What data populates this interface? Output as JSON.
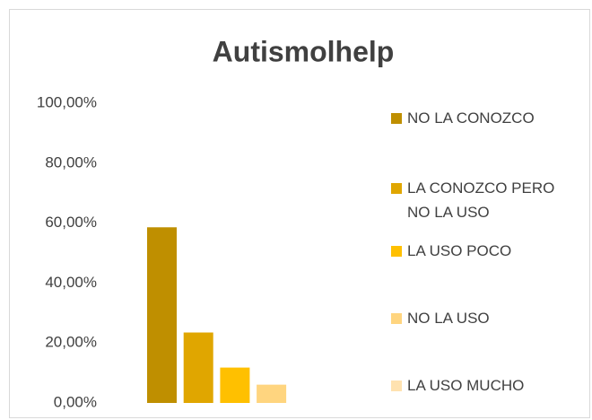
{
  "chart_data": {
    "type": "bar",
    "title": "Autismolhelp",
    "categories": [
      null
    ],
    "series": [
      {
        "name": "NO LA CONOZCO",
        "color": "#bf8f00",
        "values": [
          58.6
        ]
      },
      {
        "name": "LA CONOZCO PERO NO LA USO",
        "color": "#e0a600",
        "values": [
          23.5
        ]
      },
      {
        "name": "LA USO POCO",
        "color": "#ffc000",
        "values": [
          11.8
        ]
      },
      {
        "name": "NO LA USO",
        "color": "#ffd57f",
        "values": [
          6.1
        ]
      },
      {
        "name": "LA USO MUCHO",
        "color": "#ffe2b0",
        "values": [
          0
        ]
      }
    ],
    "ylim": [
      0,
      100
    ],
    "yticks": [
      {
        "value": 0,
        "label": "0,00%"
      },
      {
        "value": 20,
        "label": "20,00%"
      },
      {
        "value": 40,
        "label": "40,00%"
      },
      {
        "value": 60,
        "label": "60,00%"
      },
      {
        "value": 80,
        "label": "80,00%"
      },
      {
        "value": 100,
        "label": "100,00%"
      }
    ],
    "grid": false,
    "legend": "right"
  }
}
